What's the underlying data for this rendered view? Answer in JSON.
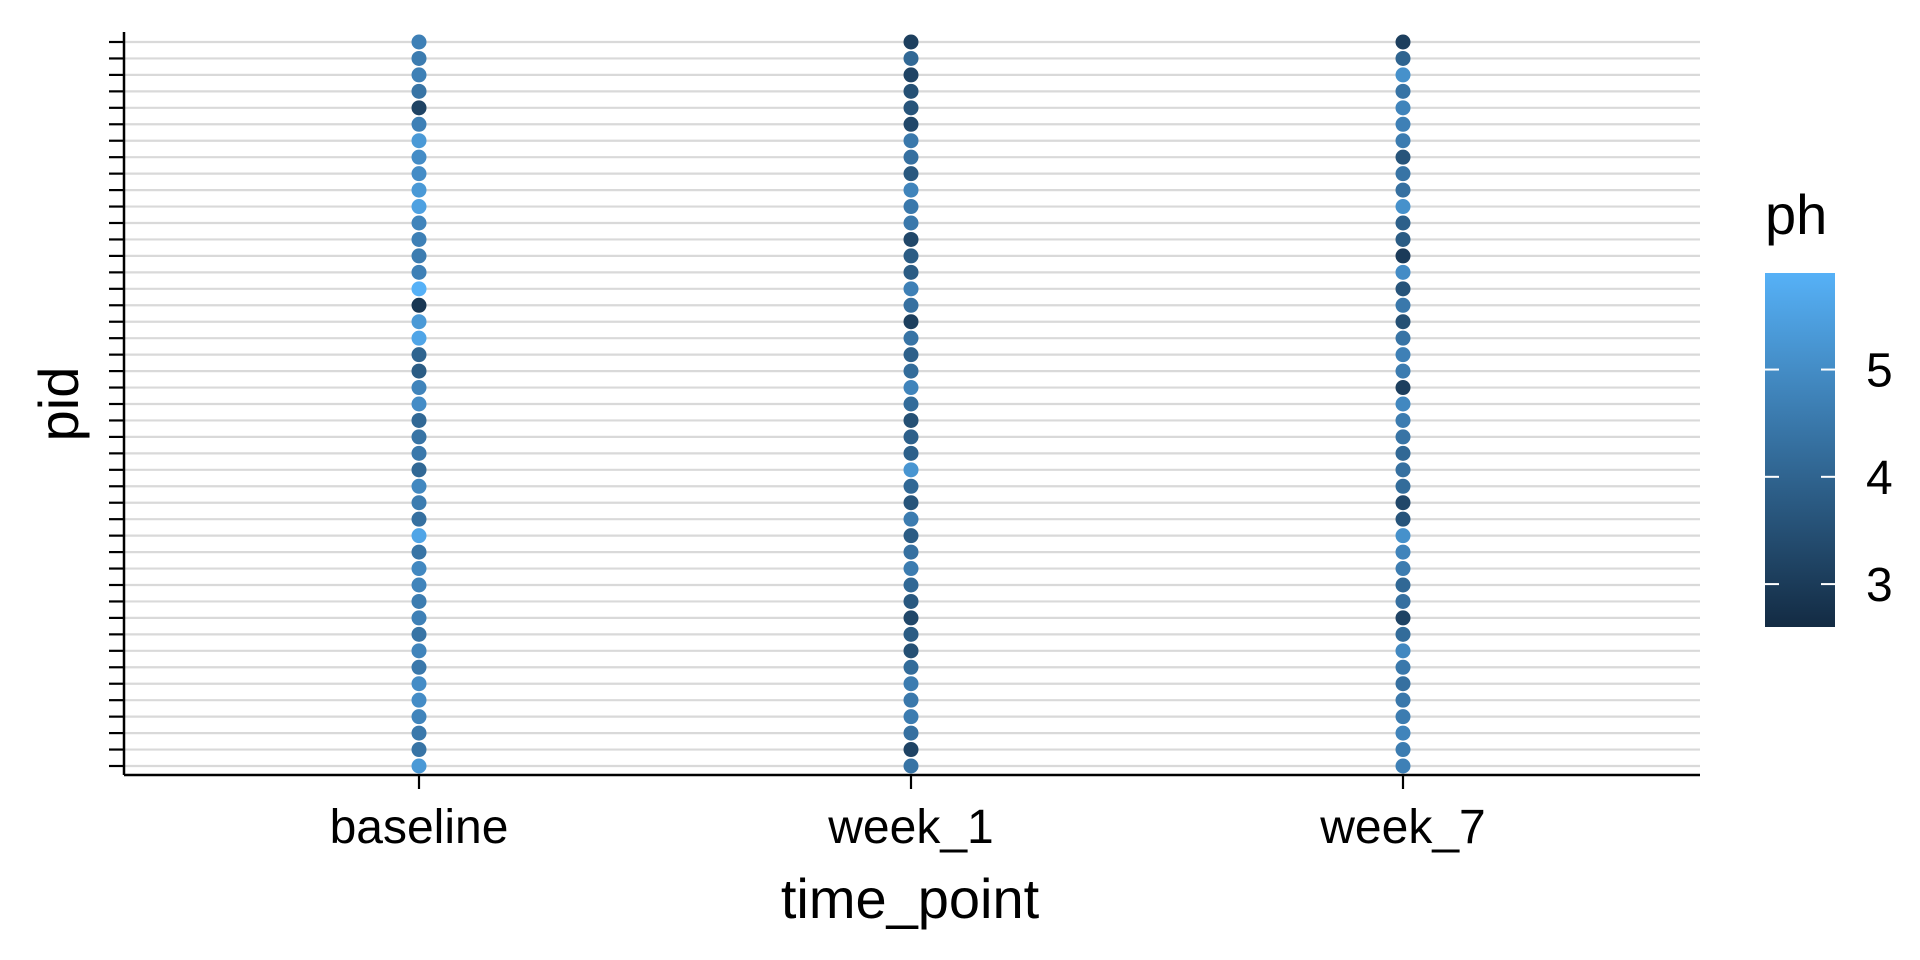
{
  "chart_data": {
    "type": "scatter",
    "xlabel": "time_point",
    "ylabel": "pid",
    "categories": [
      "baseline",
      "week_1",
      "week_7"
    ],
    "y_count": 45,
    "grid": true,
    "legend_position": "right",
    "color_scale": {
      "title": "ph",
      "low_color": "#132B43",
      "high_color": "#56B1F7",
      "min": 2.6,
      "max": 5.9,
      "breaks": [
        3,
        4,
        5
      ]
    },
    "series": [
      {
        "category": "baseline",
        "values": [
          4.7,
          4.6,
          4.7,
          4.4,
          3.2,
          4.7,
          5.3,
          5.0,
          5.0,
          5.3,
          5.5,
          4.8,
          4.7,
          4.6,
          4.7,
          5.9,
          2.9,
          5.3,
          5.6,
          4.0,
          3.8,
          4.8,
          5.0,
          4.1,
          4.4,
          4.5,
          4.1,
          4.9,
          4.6,
          4.3,
          5.6,
          4.4,
          4.9,
          4.8,
          4.6,
          4.7,
          4.4,
          4.8,
          4.5,
          5.0,
          5.0,
          4.8,
          4.5,
          4.4,
          5.3
        ]
      },
      {
        "category": "week_1",
        "values": [
          3.1,
          4.1,
          3.2,
          3.5,
          3.6,
          3.3,
          4.5,
          4.3,
          3.7,
          4.8,
          4.5,
          4.5,
          3.3,
          3.8,
          3.8,
          4.7,
          4.3,
          3.1,
          4.4,
          3.9,
          4.2,
          4.8,
          4.2,
          3.5,
          3.9,
          3.9,
          5.2,
          4.1,
          3.6,
          4.6,
          3.8,
          4.3,
          4.6,
          4.1,
          3.7,
          3.3,
          3.8,
          3.5,
          4.2,
          4.6,
          4.5,
          4.6,
          4.3,
          3.2,
          4.4
        ]
      },
      {
        "category": "week_7",
        "values": [
          3.1,
          4.0,
          5.1,
          4.4,
          4.8,
          4.7,
          4.6,
          3.6,
          4.4,
          4.3,
          5.1,
          3.9,
          3.8,
          3.0,
          5.0,
          3.6,
          4.5,
          3.5,
          4.4,
          4.7,
          4.6,
          3.1,
          4.9,
          4.6,
          4.4,
          4.1,
          4.3,
          4.2,
          3.3,
          3.6,
          5.1,
          4.8,
          4.6,
          4.1,
          4.3,
          3.2,
          4.2,
          4.9,
          4.5,
          4.3,
          4.5,
          4.6,
          4.8,
          4.6,
          4.7
        ]
      }
    ]
  }
}
